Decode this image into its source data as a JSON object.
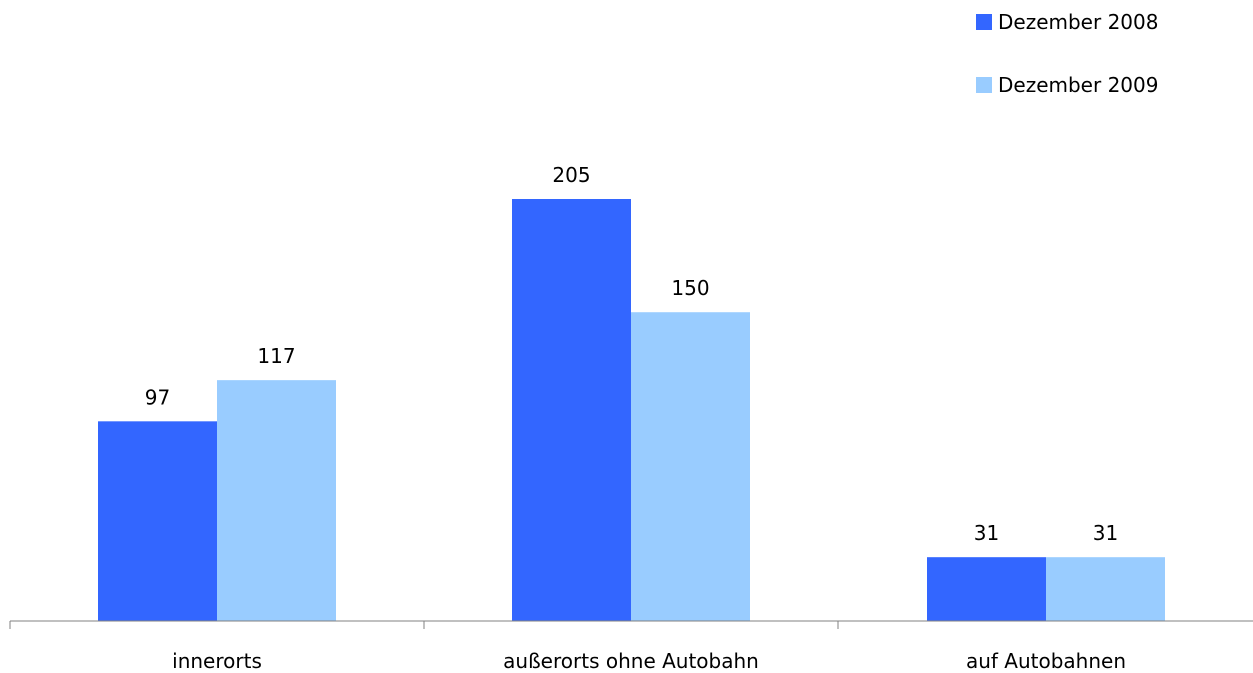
{
  "chart_data": {
    "type": "bar",
    "categories": [
      "innerorts",
      "außerorts ohne Autobahn",
      "auf Autobahnen"
    ],
    "series": [
      {
        "name": "Dezember 2008",
        "values": [
          97,
          205,
          31
        ],
        "color": "#3366ff"
      },
      {
        "name": "Dezember 2009",
        "values": [
          117,
          150,
          31
        ],
        "color": "#99ccff"
      }
    ],
    "title": "",
    "xlabel": "",
    "ylabel": "",
    "ylim": [
      0,
      220
    ],
    "grid": false,
    "legend": "top-right",
    "data_labels": true
  }
}
